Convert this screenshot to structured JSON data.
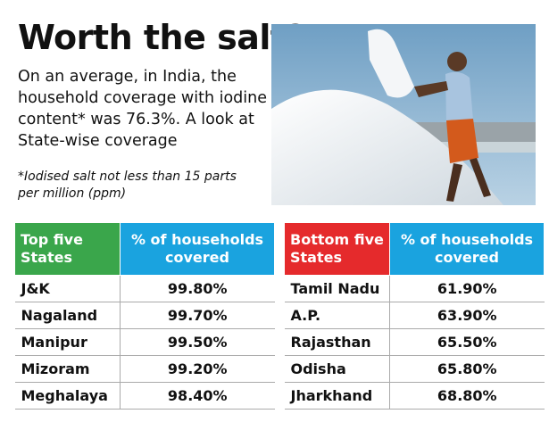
{
  "header": {
    "title": "Worth the salt?",
    "subtitle": "On an average, in India, the household coverage with iodine content* was 76.3%. A look at State-wise coverage",
    "footnote": "*Iodised salt not less than 15 parts per million (ppm)"
  },
  "colors": {
    "top_header": "#3aa64b",
    "bottom_header": "#e52a2c",
    "pct_header": "#1aa3df"
  },
  "chart_data": [
    {
      "type": "table",
      "columns": [
        "Top five States",
        "% of households covered"
      ],
      "categories": [
        "J&K",
        "Nagaland",
        "Manipur",
        "Mizoram",
        "Meghalaya"
      ],
      "values": [
        99.8,
        99.7,
        99.5,
        99.2,
        98.4
      ],
      "labels": [
        "99.80%",
        "99.70%",
        "99.50%",
        "99.20%",
        "98.40%"
      ]
    },
    {
      "type": "table",
      "columns": [
        "Bottom five States",
        "% of households covered"
      ],
      "categories": [
        "Tamil Nadu",
        "A.P.",
        "Rajasthan",
        "Odisha",
        "Jharkhand"
      ],
      "values": [
        61.9,
        63.9,
        65.5,
        65.8,
        68.8
      ],
      "labels": [
        "61.90%",
        "63.90%",
        "65.50%",
        "65.80%",
        "68.80%"
      ]
    }
  ]
}
